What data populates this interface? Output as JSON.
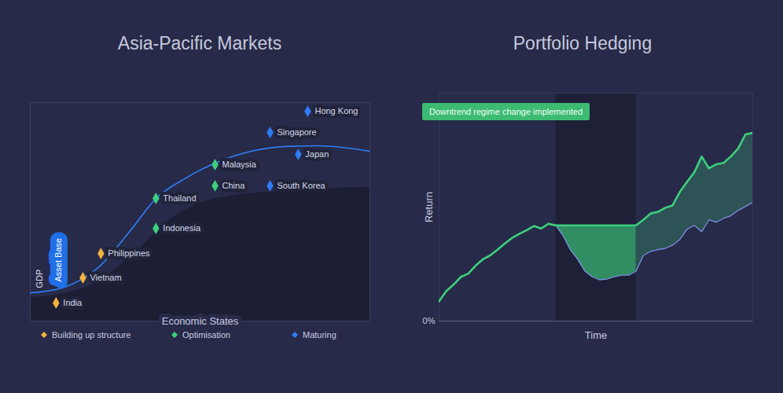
{
  "chart_data": [
    {
      "type": "scatter",
      "title": "Asia-Pacific Markets",
      "xlabel": "Economic States",
      "xlim": [
        0,
        100
      ],
      "ylim": [
        0,
        100
      ],
      "xticks": [],
      "yticks": [],
      "tick_labels": false,
      "legend": "bottom",
      "series": [
        {
          "name": "Building up structure",
          "color": "#f2b33d",
          "marker": "diamond",
          "point_labels": [
            "India",
            "Vietnam",
            "Philippines"
          ],
          "x": [
            7.6,
            15.5,
            20.8
          ],
          "values": [
            8.3,
            19.8,
            30.9
          ]
        },
        {
          "name": "Optimisation",
          "color": "#3ecf7e",
          "marker": "diamond",
          "point_labels": [
            "Thailand",
            "Indonesia",
            "Malaysia",
            "China"
          ],
          "x": [
            37.0,
            37.0,
            54.4,
            54.4
          ],
          "values": [
            56.1,
            42.4,
            71.6,
            61.9
          ]
        },
        {
          "name": "Maturing",
          "color": "#2f7df6",
          "marker": "diamond",
          "point_labels": [
            "Hong Kong",
            "Singapore",
            "Japan",
            "South Korea"
          ],
          "x": [
            81.7,
            70.6,
            78.9,
            70.6
          ],
          "values": [
            96.0,
            86.3,
            76.3,
            61.9
          ]
        }
      ],
      "curves": [
        {
          "name": "GDP",
          "type": "line",
          "color": "#2f7df6",
          "x": [
            0,
            10,
            20,
            30,
            37,
            45,
            55,
            65,
            75,
            85,
            100
          ],
          "values": [
            12.9,
            15.5,
            24.5,
            42.4,
            56.1,
            64.7,
            72.7,
            77.7,
            79.9,
            80.2,
            77.7
          ]
        },
        {
          "name": "Asset Base",
          "type": "area",
          "color": "#1c1e34",
          "x": [
            0,
            10,
            20,
            30,
            40,
            50,
            60,
            70,
            80,
            90,
            100
          ],
          "values": [
            10.8,
            12.6,
            18,
            30,
            45,
            54,
            57.5,
            59,
            60,
            60.8,
            61.2
          ]
        }
      ]
    },
    {
      "type": "line",
      "title": "Portfolio Hedging",
      "xlabel": "Time",
      "ylabel": "Return",
      "xlim": [
        0,
        43
      ],
      "ylim": [
        0,
        100
      ],
      "xticks": [],
      "yticks": [
        {
          "value": 0,
          "label": "0%"
        }
      ],
      "tick_labels": "y",
      "grid": true,
      "x": [
        0,
        1,
        2,
        3,
        4,
        5,
        6,
        7,
        8,
        9,
        10,
        11,
        12,
        13,
        14,
        15,
        16,
        17,
        18,
        19,
        20,
        21,
        22,
        23,
        24,
        25,
        26,
        27,
        28,
        29,
        30,
        31,
        32,
        33,
        34,
        35,
        36,
        37,
        38,
        39,
        40,
        41,
        42,
        43
      ],
      "series": [
        {
          "color": "#7f93e6",
          "values": [
            8.7,
            13.2,
            16.0,
            19.4,
            20.8,
            24.3,
            27.1,
            28.8,
            31.3,
            34.0,
            36.5,
            38.2,
            39.9,
            41.7,
            40.6,
            42.7,
            42.0,
            37.5,
            31.3,
            27.1,
            21.9,
            19.4,
            18.1,
            18.4,
            19.4,
            20.1,
            20.1,
            21.9,
            28.8,
            30.6,
            31.3,
            31.9,
            33.3,
            35.8,
            40.3,
            42.0,
            39.2,
            44.4,
            43.4,
            45.1,
            46.2,
            48.6,
            50.3,
            52.1
          ]
        },
        {
          "color": "#3ecf7e",
          "values": [
            8.7,
            13.2,
            16.0,
            19.4,
            20.8,
            24.3,
            27.1,
            28.8,
            31.3,
            34.0,
            36.5,
            38.2,
            39.9,
            41.7,
            40.6,
            42.7,
            42.0,
            42.0,
            42.0,
            42.0,
            42.0,
            42.0,
            42.0,
            42.0,
            42.0,
            42.0,
            42.0,
            42.0,
            44.4,
            47.2,
            47.9,
            49.7,
            50.7,
            56.6,
            61.1,
            65.3,
            72.2,
            67.0,
            68.8,
            69.4,
            72.2,
            75.7,
            81.9,
            82.6
          ]
        }
      ],
      "shaded_range": [
        16,
        27
      ],
      "annotation": "Downtrend regime change implemented"
    }
  ]
}
